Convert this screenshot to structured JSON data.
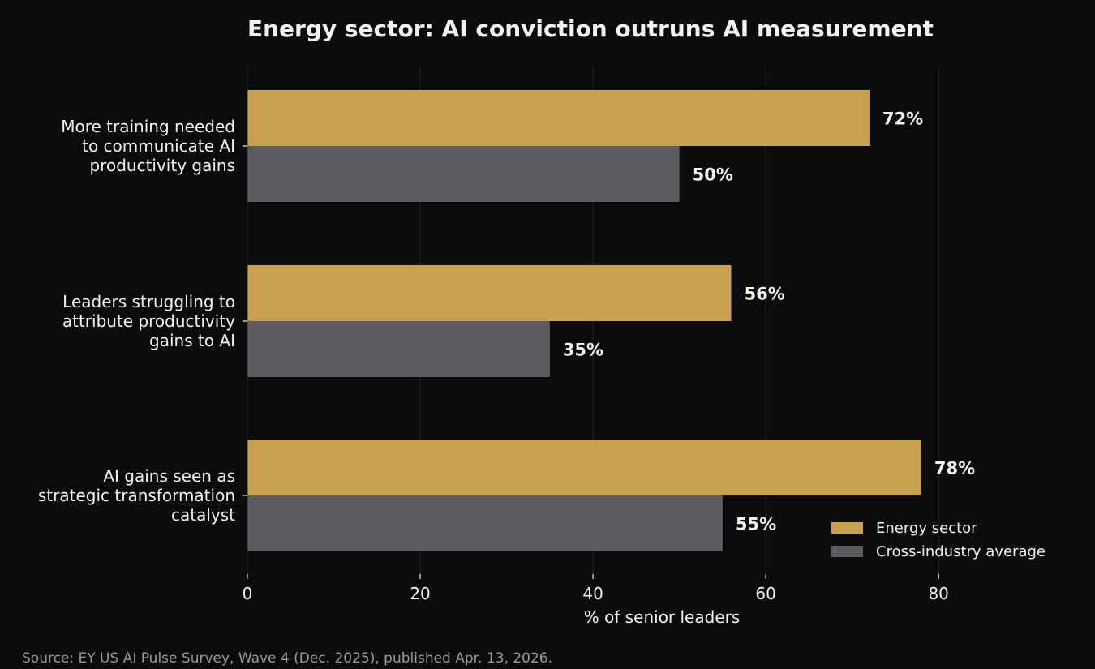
{
  "chart_data": {
    "type": "bar",
    "orientation": "horizontal",
    "title": "Energy sector: AI conviction outruns AI measurement",
    "xlabel": "% of senior leaders",
    "ylabel": "",
    "xlim": [
      0,
      92
    ],
    "xticks": [
      0,
      20,
      40,
      60,
      80
    ],
    "grid": true,
    "legend_position": "bottom-right",
    "categories": [
      [
        "More training needed",
        "to communicate AI",
        "productivity gains"
      ],
      [
        "Leaders struggling to",
        "attribute productivity",
        "gains to AI"
      ],
      [
        "AI gains seen as",
        "strategic transformation",
        "catalyst"
      ]
    ],
    "series": [
      {
        "name": "Energy sector",
        "color": "#c9a14e",
        "values": [
          72,
          56,
          78
        ],
        "labels": [
          "72%",
          "56%",
          "78%"
        ]
      },
      {
        "name": "Cross-industry average",
        "color": "#5c5b60",
        "values": [
          50,
          35,
          55
        ],
        "labels": [
          "50%",
          "35%",
          "55%"
        ]
      }
    ],
    "source": "Source: EY US AI Pulse Survey, Wave 4 (Dec. 2025), published Apr. 13, 2026."
  }
}
